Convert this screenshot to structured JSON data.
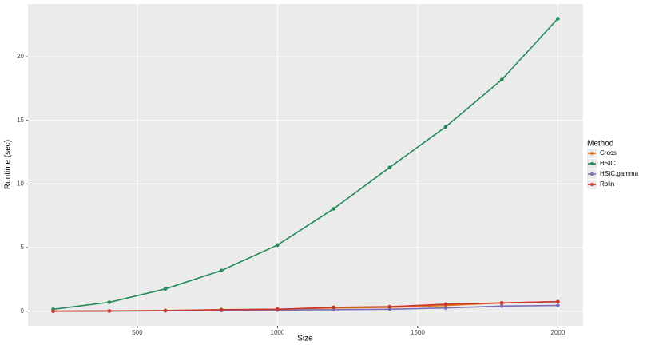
{
  "chart_data": {
    "type": "line",
    "x_label": "Size",
    "y_label": "Runtime (sec)",
    "legend_title": "Method",
    "x": [
      200,
      400,
      600,
      800,
      1000,
      1200,
      1400,
      1600,
      1800,
      2000
    ],
    "series": [
      {
        "name": "Cross",
        "color": "#e6741c",
        "values": [
          0,
          0.02,
          0.05,
          0.1,
          0.15,
          0.25,
          0.3,
          0.45,
          0.65,
          0.75
        ]
      },
      {
        "name": "HSIC",
        "color": "#238b57",
        "values": [
          0.15,
          0.7,
          1.75,
          3.2,
          5.2,
          8.05,
          11.3,
          14.5,
          18.2,
          23
        ]
      },
      {
        "name": "HSIC.gamma",
        "color": "#7b6fb5",
        "values": [
          0,
          0.01,
          0.03,
          0.05,
          0.08,
          0.12,
          0.15,
          0.25,
          0.4,
          0.45
        ]
      },
      {
        "name": "Rolin",
        "color": "#c8372a",
        "values": [
          0,
          0.02,
          0.05,
          0.12,
          0.15,
          0.3,
          0.35,
          0.55,
          0.65,
          0.75
        ]
      }
    ],
    "xlim": [
      110,
      2090
    ],
    "xticks": [
      500,
      1000,
      1500,
      2000
    ],
    "ylim": [
      -1.15,
      24.15
    ],
    "yticks": [
      0,
      5,
      10,
      15,
      20
    ],
    "grid": true,
    "legend": "right"
  }
}
